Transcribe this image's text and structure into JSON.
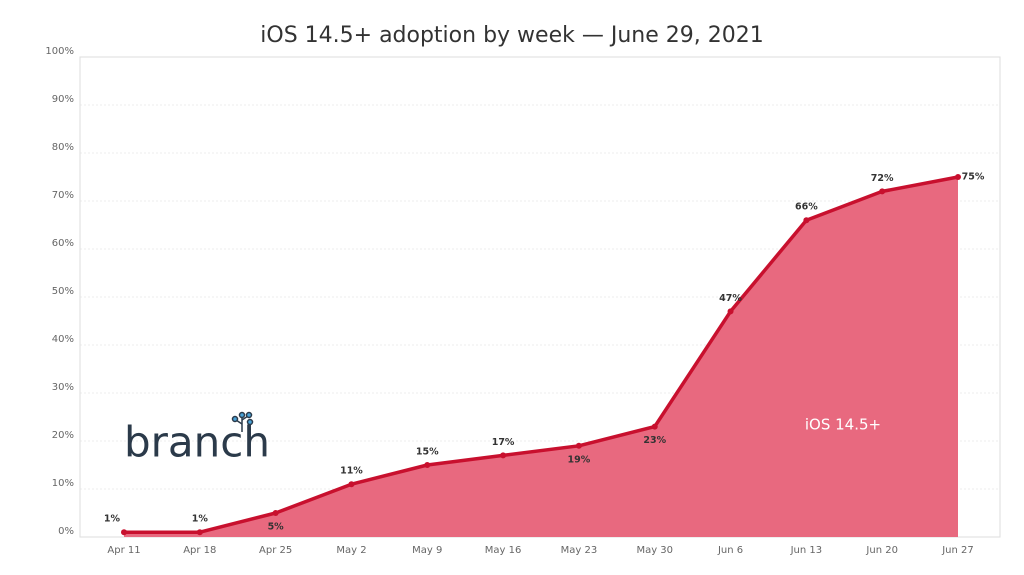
{
  "chart_data": {
    "type": "area",
    "title": "iOS 14.5+ adoption by week — June 29, 2021",
    "logo": "branch",
    "categories": [
      "Apr 11",
      "Apr 18",
      "Apr 25",
      "May 2",
      "May 9",
      "May 16",
      "May 23",
      "May 30",
      "Jun 6",
      "Jun 13",
      "Jun 20",
      "Jun 27"
    ],
    "series": [
      {
        "name": "iOS 14.5+",
        "color": "#c8102e",
        "fill": "#e8697f",
        "values": [
          1,
          1,
          5,
          11,
          15,
          17,
          19,
          23,
          47,
          66,
          72,
          75
        ],
        "value_labels": [
          "1%",
          "1%",
          "5%",
          "11%",
          "15%",
          "17%",
          "19%",
          "23%",
          "47%",
          "66%",
          "72%",
          "75%"
        ]
      }
    ],
    "ylim": [
      0,
      100
    ],
    "yticks": [
      {
        "value": 0,
        "label": "0%"
      },
      {
        "value": 10,
        "label": "10%"
      },
      {
        "value": 20,
        "label": "20%"
      },
      {
        "value": 30,
        "label": "30%"
      },
      {
        "value": 40,
        "label": "40%"
      },
      {
        "value": 50,
        "label": "50%"
      },
      {
        "value": 60,
        "label": "60%"
      },
      {
        "value": 70,
        "label": "70%"
      },
      {
        "value": 80,
        "label": "80%"
      },
      {
        "value": 90,
        "label": "90%"
      },
      {
        "value": 100,
        "label": "100%"
      }
    ],
    "grid": true
  }
}
